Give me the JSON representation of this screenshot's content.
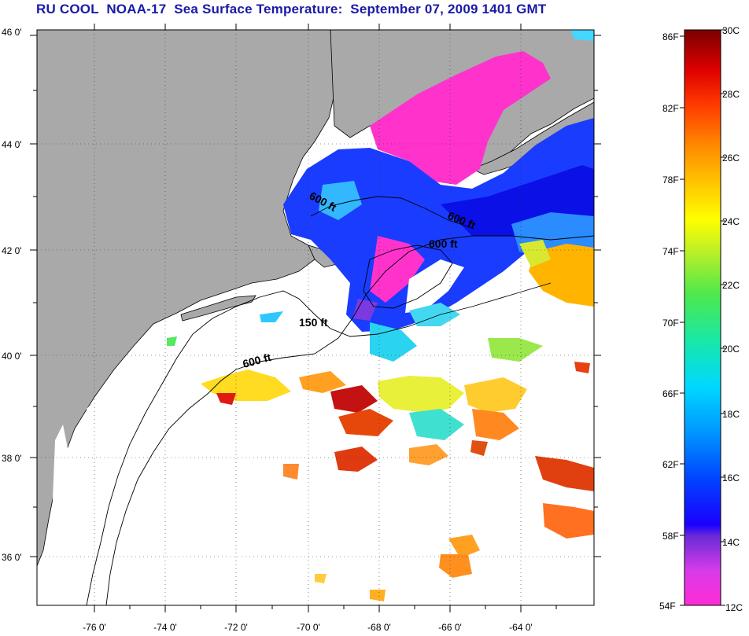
{
  "title": "RU COOL  NOAA-17  Sea Surface Temperature:  September 07, 2009 1401 GMT",
  "map": {
    "lat_labels": [
      "46 0'",
      "44 0'",
      "42 0'",
      "40 0'",
      "38 0'",
      "36 0'"
    ],
    "lon_labels": [
      "-76 0'",
      "-74 0'",
      "-72 0'",
      "-70 0'",
      "-68 0'",
      "-66 0'",
      "-64 0'"
    ],
    "contour_labels": [
      "600 ft",
      "600 ft",
      "600 ft",
      "150 ft",
      "600 ft"
    ],
    "colors": {
      "land": "#a9a9a9",
      "ocean_nodata": "#ffffff",
      "coast": "#000000"
    }
  },
  "colorbar": {
    "f_labels": [
      "86F",
      "82F",
      "78F",
      "74F",
      "70F",
      "66F",
      "62F",
      "58F",
      "54F"
    ],
    "c_labels": [
      "30C",
      "28C",
      "26C",
      "24C",
      "22C",
      "20C",
      "18C",
      "16C",
      "14C",
      "12C"
    ],
    "range_f": [
      54,
      86
    ],
    "range_c": [
      12,
      30
    ]
  }
}
